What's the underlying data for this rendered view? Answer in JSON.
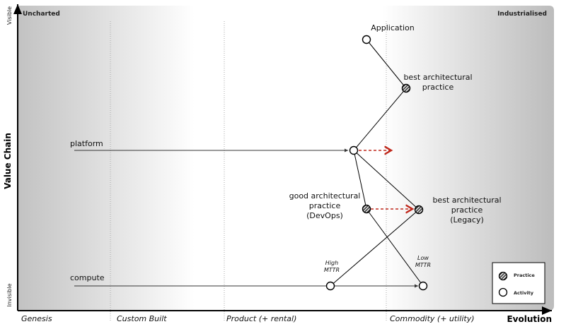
{
  "axes": {
    "y_title": "Value Chain",
    "y_top": "Visible",
    "y_bottom": "Invisible",
    "x_title": "Evolution",
    "stages": [
      "Genesis",
      "Custom Built",
      "Product (+ rental)",
      "Commodity (+ utility)"
    ],
    "corner_left": "Uncharted",
    "corner_right": "Industrialised"
  },
  "nodes": [
    {
      "id": "application",
      "label": [
        "Application"
      ],
      "type": "activity"
    },
    {
      "id": "best-practice-top",
      "label": [
        "best architectural",
        "practice"
      ],
      "type": "practice"
    },
    {
      "id": "platform",
      "label": [
        "platform"
      ],
      "type": "activity"
    },
    {
      "id": "good-practice-devops",
      "label": [
        "good architectural",
        "practice",
        "(DevOps)"
      ],
      "type": "practice"
    },
    {
      "id": "best-practice-legacy",
      "label": [
        "best architectural",
        "practice",
        "(Legacy)"
      ],
      "type": "practice"
    },
    {
      "id": "compute-high-mttr",
      "label": [
        "High",
        "MTTR"
      ],
      "type": "activity"
    },
    {
      "id": "compute-low-mttr",
      "label": [
        "Low",
        "MTTR"
      ],
      "type": "activity"
    }
  ],
  "compute_label": "compute",
  "edges": [
    [
      "application",
      "best-practice-top"
    ],
    [
      "best-practice-top",
      "platform"
    ],
    [
      "platform",
      "good-practice-devops"
    ],
    [
      "platform",
      "best-practice-legacy"
    ],
    [
      "good-practice-devops",
      "compute-low-mttr"
    ],
    [
      "best-practice-legacy",
      "compute-high-mttr"
    ]
  ],
  "legend": {
    "practice": "Practice",
    "activity": "Activity"
  },
  "colors": {
    "movement_arrow": "#c0281c",
    "shade": "#bdbdbd"
  }
}
